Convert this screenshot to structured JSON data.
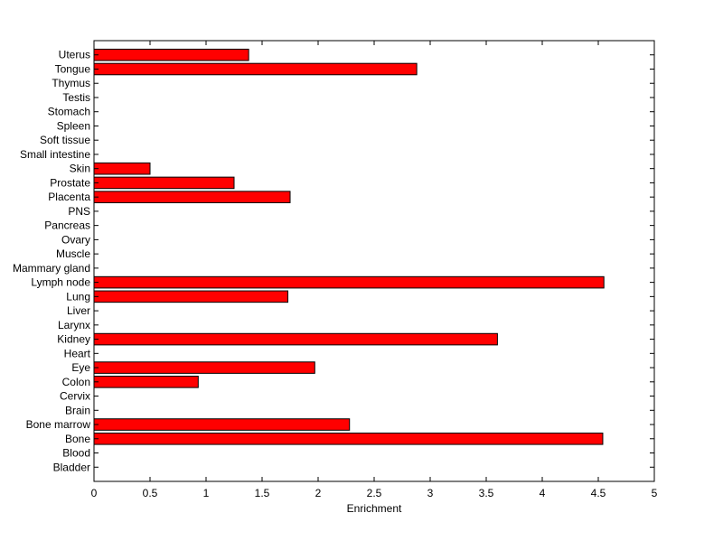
{
  "chart_data": {
    "type": "bar",
    "orientation": "horizontal",
    "title": "",
    "xlabel": "Enrichment",
    "ylabel": "",
    "xlim": [
      0,
      5
    ],
    "xticks": [
      0,
      0.5,
      1,
      1.5,
      2,
      2.5,
      3,
      3.5,
      4,
      4.5,
      5
    ],
    "xtick_labels": [
      "0",
      "0.5",
      "1",
      "1.5",
      "2",
      "2.5",
      "3",
      "3.5",
      "4",
      "4.5",
      "5"
    ],
    "grid": false,
    "bar_color": "#ff0000",
    "categories": [
      "Bladder",
      "Blood",
      "Bone",
      "Bone marrow",
      "Brain",
      "Cervix",
      "Colon",
      "Eye",
      "Heart",
      "Kidney",
      "Larynx",
      "Liver",
      "Lung",
      "Lymph node",
      "Mammary gland",
      "Muscle",
      "Ovary",
      "Pancreas",
      "PNS",
      "Placenta",
      "Prostate",
      "Skin",
      "Small intestine",
      "Soft tissue",
      "Spleen",
      "Stomach",
      "Testis",
      "Thymus",
      "Tongue",
      "Uterus"
    ],
    "values": [
      0,
      0,
      4.54,
      2.28,
      0,
      0,
      0.93,
      1.97,
      0,
      3.6,
      0,
      0,
      1.73,
      4.55,
      0,
      0,
      0,
      0,
      0,
      1.75,
      1.25,
      0.5,
      0,
      0,
      0,
      0,
      0,
      0,
      2.88,
      1.38
    ]
  }
}
